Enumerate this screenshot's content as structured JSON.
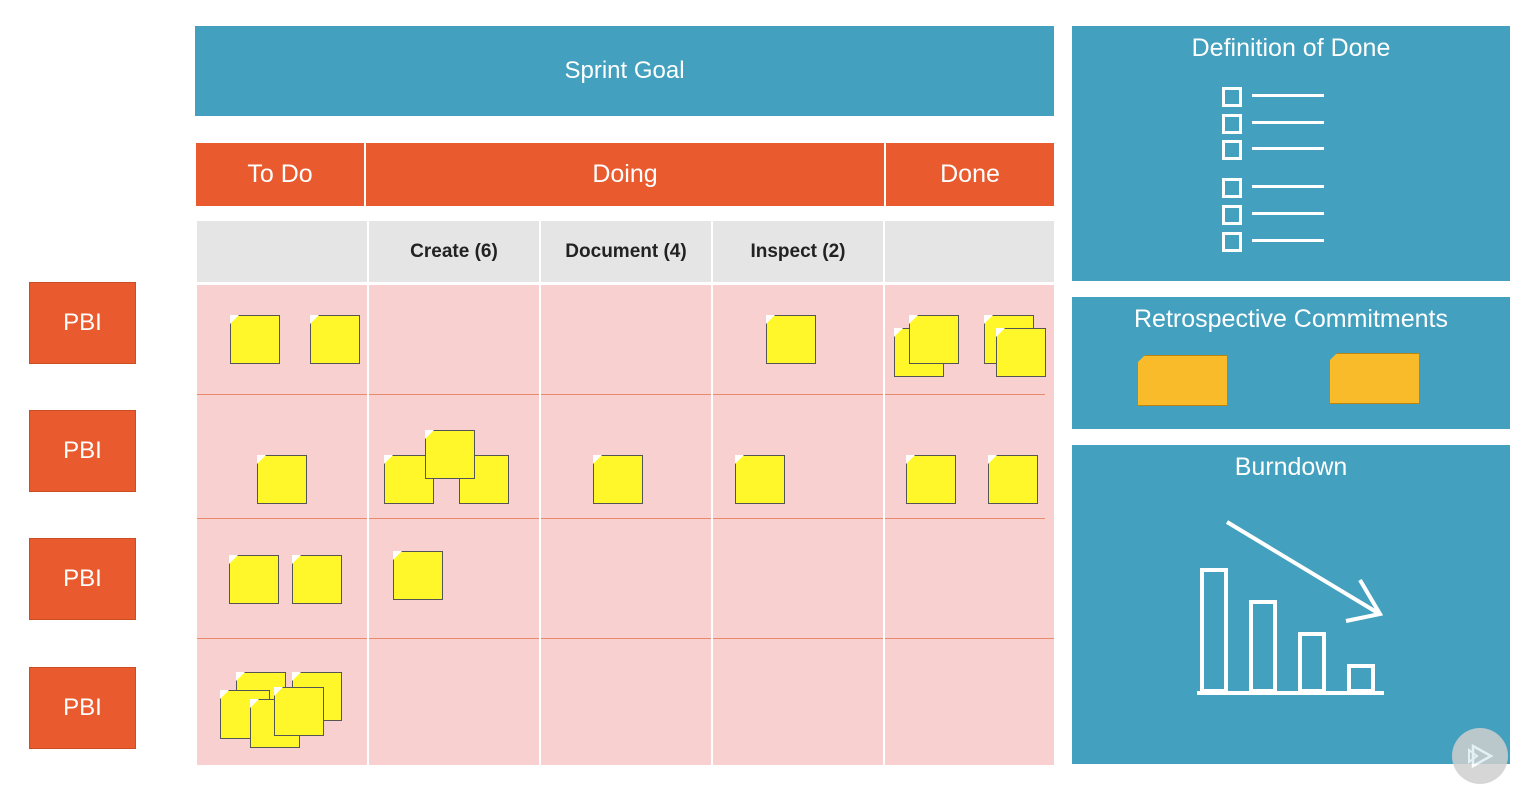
{
  "sprint_goal": "Sprint Goal",
  "columns": {
    "todo": "To Do",
    "doing": "Doing",
    "done": "Done"
  },
  "sub_columns": [
    "",
    "Create (6)",
    "Document (4)",
    "Inspect (2)",
    ""
  ],
  "rows": [
    {
      "label": "PBI"
    },
    {
      "label": "PBI"
    },
    {
      "label": "PBI"
    },
    {
      "label": "PBI"
    }
  ],
  "panels": {
    "definition_of_done": "Definition of Done",
    "retrospective_commitments": "Retrospective Commitments",
    "burndown": "Burndown"
  },
  "colors": {
    "teal": "#43a0be",
    "orange": "#e95b2e",
    "board_pink": "#f8d0d0",
    "sticky_yellow": "#fff72a",
    "retro_amber": "#f9bb29"
  },
  "icons": {
    "checklist": "checklist-icon",
    "burndown_chart": "burndown-chart-icon",
    "play": "play-icon"
  }
}
